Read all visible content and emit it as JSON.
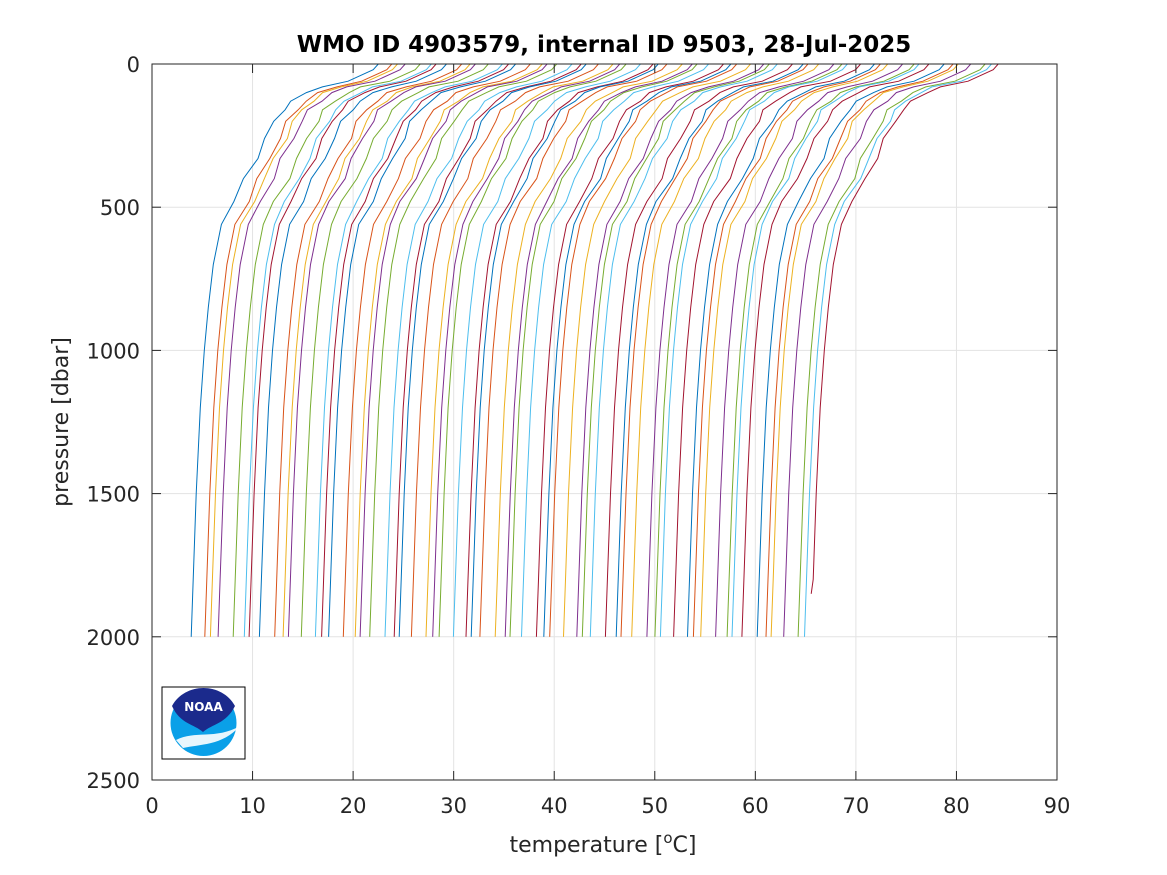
{
  "chart_data": {
    "type": "line",
    "title": "WMO ID 4903579, internal ID 9503, 28-Jul-2025",
    "xlabel_main": "temperature [",
    "xlabel_sup": "o",
    "xlabel_end": "C]",
    "ylabel": "pressure [dbar]",
    "xlim": [
      0,
      90
    ],
    "ylim": [
      0,
      2500
    ],
    "y_reversed": true,
    "grid": true,
    "x_ticks": [
      "0",
      "10",
      "20",
      "30",
      "40",
      "50",
      "60",
      "70",
      "80",
      "90"
    ],
    "y_ticks": [
      "0",
      "500",
      "1000",
      "1500",
      "2000",
      "2500"
    ],
    "x_tick_values": [
      0,
      10,
      20,
      30,
      40,
      50,
      60,
      70,
      80,
      90
    ],
    "y_tick_values": [
      0,
      500,
      1000,
      1500,
      2000,
      2500
    ],
    "series_description": "waterfall of temperature profiles, each offset by ~1 degree",
    "profile_count": 63,
    "first_profile_offset": 0,
    "profile_spacing": 1.0,
    "base_profile": {
      "pressure": [
        0,
        20,
        60,
        80,
        100,
        130,
        160,
        200,
        260,
        330,
        400,
        480,
        560,
        700,
        850,
        1000,
        1200,
        1500,
        1800,
        2000
      ],
      "temperature": [
        22.5,
        22.0,
        19.5,
        16.8,
        15.3,
        14.0,
        13.0,
        12.2,
        11.3,
        10.3,
        9.3,
        8.1,
        6.9,
        6.1,
        5.6,
        5.2,
        4.8,
        4.4,
        4.1,
        3.9
      ]
    },
    "colors": [
      "#0072BD",
      "#D95319",
      "#EDB120",
      "#7E2F8E",
      "#77AC30",
      "#4DBEEE",
      "#A2142F"
    ],
    "logo_text": "NOAA"
  }
}
